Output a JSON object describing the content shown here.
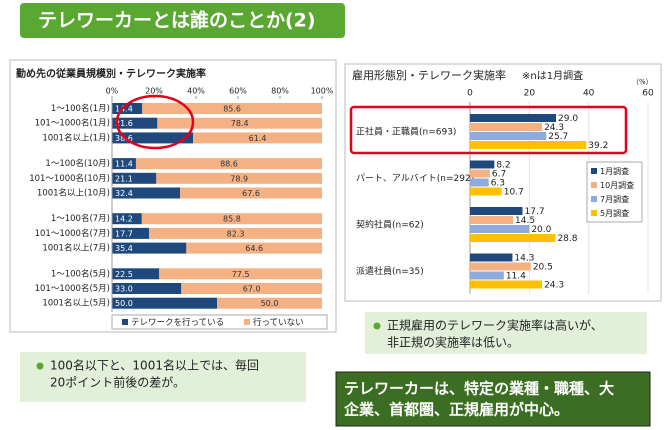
{
  "header": {
    "title": "テレワーカーとは誰のことか(2)"
  },
  "chart_data": [
    {
      "type": "bar",
      "orientation": "horizontal",
      "stacked": true,
      "title": "勤め先の従業員規模別・テレワーク実施率",
      "categories": [
        "1～100名(1月)",
        "101～1000名(1月)",
        "1001名以上(1月)",
        "1～100名(10月)",
        "101～1000名(10月)",
        "1001名以上(10月)",
        "1～100名(7月)",
        "101～1000名(7月)",
        "1001名以上(7月)",
        "1～100名(5月)",
        "101～1000名(5月)",
        "1001名以上(5月)"
      ],
      "series": [
        {
          "name": "テレワークを行っている",
          "color": "#1f497d",
          "values": [
            14.4,
            21.6,
            38.6,
            11.4,
            21.1,
            32.4,
            14.2,
            17.7,
            35.4,
            22.5,
            33.0,
            50.0
          ],
          "value_labels": [
            "14.4",
            "21.6",
            "38.6",
            "11.4",
            "21.1",
            "32.4",
            "14.2",
            "17.7",
            "35.4",
            "22.5",
            "33.0",
            "50.0"
          ]
        },
        {
          "name": "行っていない",
          "color": "#f4b183",
          "values": [
            85.6,
            78.4,
            61.4,
            88.6,
            78.9,
            67.6,
            85.8,
            82.3,
            64.6,
            77.5,
            67.0,
            50.0
          ],
          "value_labels": [
            "85.6",
            "78.4",
            "61.4",
            "88.6",
            "78.9",
            "67.6",
            "85.8",
            "82.3",
            "64.6",
            "77.5",
            "67.0",
            "50.0"
          ]
        }
      ],
      "xlim": [
        0,
        100
      ],
      "xticks": [
        {
          "value": 0,
          "label": "0%"
        },
        {
          "value": 20,
          "label": "20%"
        },
        {
          "value": 40,
          "label": "40%"
        },
        {
          "value": 60,
          "label": "60%"
        },
        {
          "value": 80,
          "label": "80%"
        },
        {
          "value": 100,
          "label": "100%"
        }
      ],
      "legend": "bottom"
    },
    {
      "type": "bar",
      "orientation": "horizontal",
      "stacked": false,
      "title": "雇用形態別・テレワーク実施率",
      "subtitle": "※nは1月調査",
      "unit_label": "（%）",
      "categories": [
        "正社員・正職員(n=693)",
        "パート、アルバイト(n=292)",
        "契約社員(n=62)",
        "派遣社員(n=35)"
      ],
      "series": [
        {
          "name": "1月調査",
          "color": "#1f497d",
          "values": [
            29.0,
            8.2,
            17.7,
            14.3
          ],
          "value_labels": [
            "29.0",
            "8.2",
            "17.7",
            "14.3"
          ]
        },
        {
          "name": "10月調査",
          "color": "#f4b183",
          "values": [
            24.3,
            6.7,
            14.5,
            20.5
          ],
          "value_labels": [
            "24.3",
            "6.7",
            "14.5",
            "20.5"
          ]
        },
        {
          "name": "7月調査",
          "color": "#8faadc",
          "values": [
            25.7,
            6.3,
            20.0,
            11.4
          ],
          "value_labels": [
            "25.7",
            "6.3",
            "20.0",
            "11.4"
          ]
        },
        {
          "name": "5月調査",
          "color": "#ffc000",
          "values": [
            39.2,
            10.7,
            28.8,
            24.3
          ],
          "value_labels": [
            "39.2",
            "10.7",
            "28.8",
            "24.3"
          ]
        }
      ],
      "xlim": [
        0,
        60
      ],
      "xticks": [
        0,
        20,
        40,
        60
      ],
      "legend": "right"
    }
  ],
  "notes": [
    {
      "lines": [
        "100名以下と、1001名以上では、毎回",
        "20ポイント前後の差が。"
      ]
    },
    {
      "lines": [
        "正規雇用のテレワーク実施率は高いが、",
        "非正規の実施率は低い。"
      ]
    }
  ],
  "conclusion": {
    "lines": [
      "テレワーカーは、特定の業種・職種、大",
      "企業、首都圏、正規雇用が中心。"
    ]
  }
}
